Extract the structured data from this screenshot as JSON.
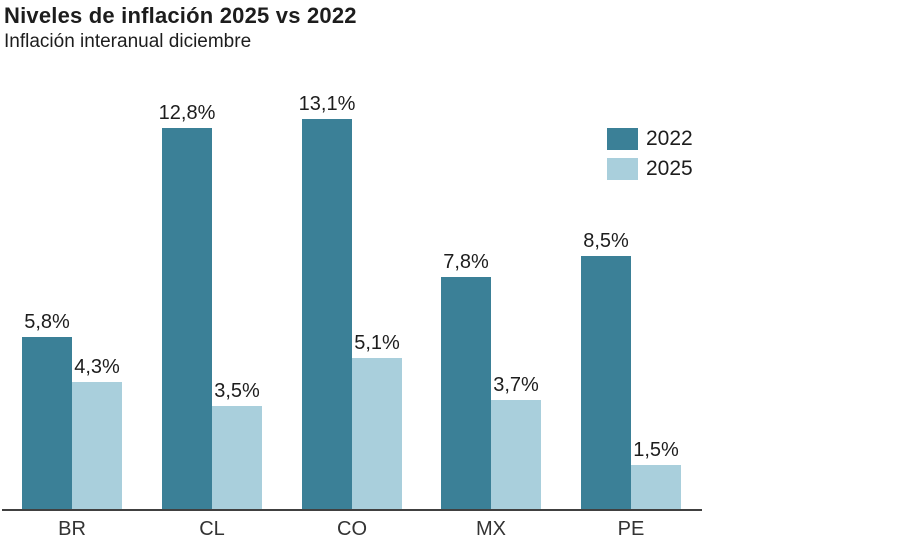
{
  "chart_data": {
    "type": "bar",
    "title": "Niveles de inflación 2025 vs 2022",
    "subtitle": "Inflación interanual diciembre",
    "categories": [
      "BR",
      "CL",
      "CO",
      "MX",
      "PE"
    ],
    "series": [
      {
        "name": "2022",
        "color": "#3b8097",
        "values": [
          5.8,
          12.8,
          13.1,
          7.8,
          8.5
        ],
        "value_labels": [
          "5,8%",
          "12,8%",
          "13,1%",
          "7,8%",
          "8,5%"
        ]
      },
      {
        "name": "2025",
        "color": "#a9cfdc",
        "values": [
          4.3,
          3.5,
          5.1,
          3.7,
          1.5
        ],
        "value_labels": [
          "4,3%",
          "3,5%",
          "5,1%",
          "3,7%",
          "1,5%"
        ]
      }
    ],
    "xlabel": "",
    "ylabel": "",
    "ylim": [
      0,
      13.1
    ],
    "grid": false,
    "y_axis_visible": false,
    "value_labels_visible": true,
    "legend_position": "top-right"
  },
  "colors": {
    "axis_line": "#404040",
    "text_primary": "#1d1d1d",
    "tick_label": "#333333",
    "background": "#ffffff"
  }
}
